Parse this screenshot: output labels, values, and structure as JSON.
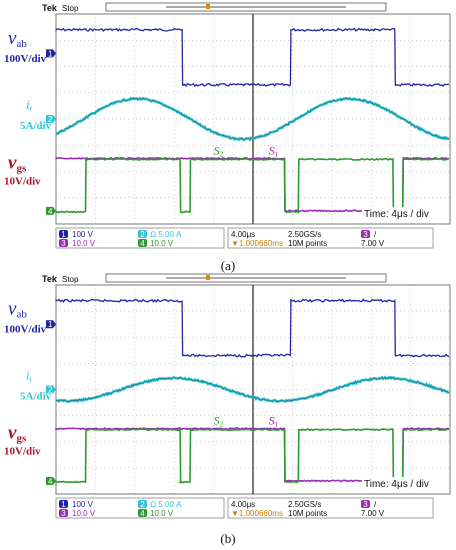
{
  "colors": {
    "vab": "#1f24a8",
    "ir": "#32c4d4",
    "vgs": "#2d9a2d",
    "vgs_other": "#9b2bb8",
    "label_red": "#b0122a",
    "grid": "#9aa0a6",
    "bg": "#ffffff"
  },
  "panels": [
    {
      "id": "a",
      "caption": "(a)",
      "header": {
        "brand": "Tek",
        "state": "Stop"
      },
      "labels": {
        "vab": "v",
        "vab_sub": "ab",
        "vab_scale": "100V/div",
        "ir": "i",
        "ir_sub": "r",
        "ir_scale": "5A/div",
        "vgs": "v",
        "vgs_sub": "gs",
        "vgs_scale": "10V/div",
        "s2": "S",
        "s2_sub": "2",
        "s1": "S",
        "s1_sub": "1",
        "time": "Time: 4μs / div"
      },
      "status": {
        "ch1": "100 V",
        "ch2": "Ω 5.00 A",
        "ch3": "10.0 V",
        "ch4": "10.0 V",
        "timebase": "4.00μs",
        "trig_pos": "▼1.000660ms",
        "rate": "2.50GS/s",
        "points": "10M points",
        "trig_level": "7.00 V"
      }
    },
    {
      "id": "b",
      "caption": "(b)",
      "header": {
        "brand": "Tek",
        "state": "Stop"
      },
      "labels": {
        "vab": "v",
        "vab_sub": "ab",
        "vab_scale": "100V/div",
        "ir": "i",
        "ir_sub": "r",
        "ir_scale": "5A/div",
        "vgs": "v",
        "vgs_sub": "gs",
        "vgs_scale": "10V/div",
        "s2": "S",
        "s2_sub": "2",
        "s1": "S",
        "s1_sub": "1",
        "time": "Time: 4μs / div"
      },
      "status": {
        "ch1": "100 V",
        "ch2": "Ω 5.00 A",
        "ch3": "10.0 V",
        "ch4": "10.0 V",
        "timebase": "4.00μs",
        "trig_pos": "▼1.000660ms",
        "rate": "2.50GS/s",
        "points": "10M points",
        "trig_level": "7.00 V"
      }
    }
  ],
  "chart_data": [
    {
      "type": "line",
      "title": "(a)",
      "x_unit": "μs",
      "time_per_div": 4,
      "x_range": [
        0,
        40
      ],
      "period_us": 21.6,
      "series": [
        {
          "name": "vab",
          "kind": "square",
          "high_div": 3.0,
          "low_div": 0.8,
          "rise_us": [
            2.2,
            23.8
          ],
          "fall_us": [
            12.8,
            34.4
          ]
        },
        {
          "name": "ir",
          "kind": "sine",
          "amplitude_div": 0.35,
          "center_div": 0.0,
          "peak_us": 8.2
        },
        {
          "name": "S2",
          "kind": "square",
          "rise_us": [
            3.0,
            13.6,
            24.6,
            35.2
          ],
          "fall_us": [
            12.6,
            23.2,
            34.2
          ]
        },
        {
          "name": "S1",
          "kind": "square",
          "rise_us": [
            13.6,
            35.2
          ],
          "fall_us": [
            23.2
          ]
        }
      ]
    },
    {
      "type": "line",
      "title": "(b)",
      "x_unit": "μs",
      "time_per_div": 4,
      "x_range": [
        0,
        40
      ],
      "period_us": 21.6,
      "series": [
        {
          "name": "vab",
          "kind": "square",
          "rise_us": [
            2.2,
            23.8
          ],
          "fall_us": [
            12.8,
            34.4
          ]
        },
        {
          "name": "ir",
          "kind": "sine",
          "amplitude_div": 0.2,
          "center_div": 0.0,
          "peak_us": 12.0
        },
        {
          "name": "S2",
          "kind": "square",
          "rise_us": [
            3.0,
            13.6,
            24.6,
            35.2
          ],
          "fall_us": [
            12.6,
            23.2,
            34.2
          ]
        },
        {
          "name": "S1",
          "kind": "square",
          "rise_us": [
            13.6,
            35.2
          ],
          "fall_us": [
            23.2
          ]
        }
      ]
    }
  ]
}
